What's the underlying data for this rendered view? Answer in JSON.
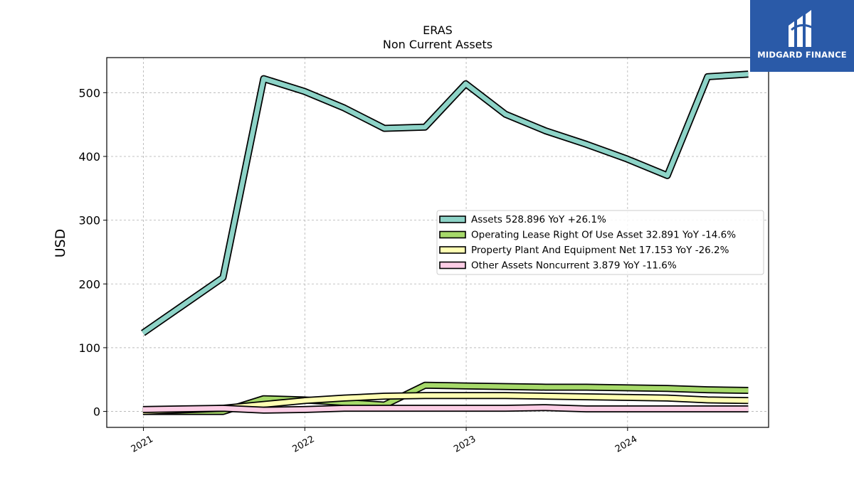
{
  "chart_data": {
    "type": "area",
    "title": "ERAS",
    "subtitle": "Non Current  Assets",
    "ylabel": "USD",
    "xlabel": "",
    "ylim": [
      -25,
      555
    ],
    "xlim": [
      "2020-10-10",
      "2024-11-15"
    ],
    "grid": true,
    "legend_position": "center-right",
    "yticks": [
      0,
      100,
      200,
      300,
      400,
      500
    ],
    "xtick_labels": [
      {
        "label": "2021",
        "date": "2021-01-01"
      },
      {
        "label": "2022",
        "date": "2022-01-01"
      },
      {
        "label": "2023",
        "date": "2023-01-01"
      },
      {
        "label": "2024",
        "date": "2024-01-01"
      }
    ],
    "dates": [
      "2020-12-31",
      "2021-06-30",
      "2021-09-30",
      "2021-12-31",
      "2022-03-31",
      "2022-06-30",
      "2022-09-30",
      "2022-12-31",
      "2023-03-31",
      "2023-06-30",
      "2023-09-30",
      "2023-12-31",
      "2024-03-31",
      "2024-06-30",
      "2024-09-30"
    ],
    "series": [
      {
        "name": "Assets",
        "legend": "Assets  528.896 YoY +26.1%",
        "color": "#8dd3c7",
        "values": [
          123,
          210,
          522,
          502,
          476,
          444,
          446,
          514,
          466,
          440,
          419,
          396,
          370,
          525,
          529
        ]
      },
      {
        "name": "Operating Lease Right Of Use Asset",
        "legend": "Operating Lease Right Of Use Asset  32.891 YoY -14.6%",
        "color": "#a6d96a",
        "values": [
          0,
          0,
          20,
          18,
          14,
          10,
          41,
          40,
          39,
          38,
          38,
          37,
          36,
          34,
          33
        ]
      },
      {
        "name": "Property Plant And Equipment Net",
        "legend": "Property Plant And Equipment Net  17.153 YoY -26.2%",
        "color": "#ffffb3",
        "values": [
          0,
          5,
          11,
          17,
          21,
          24,
          25,
          25,
          25,
          24,
          23,
          22,
          21,
          18,
          17
        ]
      },
      {
        "name": "Other Assets Noncurrent",
        "legend": "Other Assets Noncurrent  3.879 YoY -11.6%",
        "color": "#fccde5",
        "values": [
          3,
          5,
          2,
          3,
          5,
          5,
          5,
          5,
          5,
          6,
          4,
          4,
          4,
          4,
          4
        ]
      }
    ]
  },
  "logo": {
    "text": "MIDGARD FINANCE",
    "color": "#2a5aa8"
  }
}
